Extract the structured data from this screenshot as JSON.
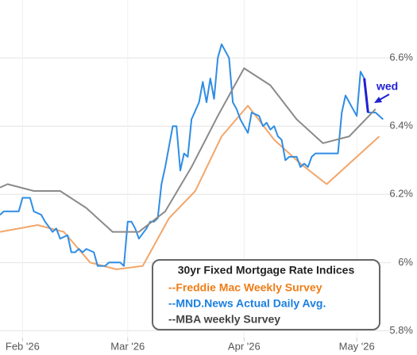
{
  "chart_data": {
    "type": "line",
    "xlim": [
      26,
      129
    ],
    "xticks": [
      {
        "value": 32,
        "label": "Feb '26"
      },
      {
        "value": 60,
        "label": "Mar '26"
      },
      {
        "value": 91,
        "label": "Apr '26"
      },
      {
        "value": 121,
        "label": "May '26"
      }
    ],
    "ylim": [
      5.78,
      6.77
    ],
    "yticks": [
      {
        "value": 5.8,
        "label": "5.8%"
      },
      {
        "value": 6,
        "label": "6%"
      },
      {
        "value": 6.2,
        "label": "6.2%"
      },
      {
        "value": 6.4,
        "label": "6.4%"
      },
      {
        "value": 6.6,
        "label": "6.6%"
      }
    ],
    "grid": true,
    "legend_title": "30yr Fixed Mortgage Rate Indices",
    "legend_position": "bottom-right",
    "annotation": {
      "text": "wed",
      "color": "#1f1fd6"
    },
    "series": [
      {
        "name": "--Freddie Mac Weekly Survey",
        "color": "#f2a66a",
        "label_color": "#ee7d16",
        "x": [
          26,
          36,
          43,
          50,
          57,
          64,
          71,
          78,
          85,
          92,
          99,
          106,
          113,
          120,
          127
        ],
        "values": [
          6.09,
          6.11,
          6.09,
          6.0,
          5.98,
          5.99,
          6.13,
          6.21,
          6.37,
          6.46,
          6.36,
          6.29,
          6.23,
          6.3,
          6.37
        ]
      },
      {
        "name": "--MND.News Actual Daily Avg.",
        "color": "#2f8de4",
        "label_color": "#1b7fe0",
        "x": [
          26,
          27,
          28,
          31,
          32,
          34,
          35,
          37,
          38,
          40,
          41,
          42,
          44,
          45,
          46,
          47,
          48,
          49,
          51,
          52,
          54,
          55,
          58,
          59,
          60,
          61,
          62,
          63,
          65,
          66,
          67,
          68,
          69,
          70,
          72,
          73,
          74,
          75,
          76,
          77,
          79,
          80,
          81,
          82,
          83,
          84,
          85,
          87,
          88,
          89,
          90,
          92,
          93,
          95,
          96,
          97,
          98,
          99,
          100,
          101,
          102,
          103,
          104,
          105,
          106,
          107,
          108,
          109,
          110,
          113,
          116,
          117,
          118,
          120,
          121,
          122,
          123,
          124,
          126,
          128
        ],
        "values": [
          6.14,
          6.15,
          6.15,
          6.15,
          6.19,
          6.19,
          6.15,
          6.14,
          6.12,
          6.09,
          6.1,
          6.07,
          6.08,
          6.03,
          6.03,
          6.04,
          6.03,
          6.04,
          6.03,
          5.99,
          5.99,
          6.0,
          6.0,
          5.99,
          6.12,
          6.12,
          6.1,
          6.07,
          6.1,
          6.12,
          6.12,
          6.13,
          6.23,
          6.28,
          6.4,
          6.4,
          6.27,
          6.32,
          6.31,
          6.42,
          6.47,
          6.53,
          6.47,
          6.54,
          6.48,
          6.6,
          6.64,
          6.6,
          6.47,
          6.45,
          6.42,
          6.38,
          6.44,
          6.43,
          6.4,
          6.41,
          6.39,
          6.4,
          6.37,
          6.36,
          6.3,
          6.31,
          6.31,
          6.31,
          6.28,
          6.29,
          6.28,
          6.31,
          6.32,
          6.32,
          6.32,
          6.44,
          6.49,
          6.45,
          6.43,
          6.56,
          6.54,
          6.44,
          6.44,
          6.42
        ]
      },
      {
        "name": "--MBA weekly Survey",
        "color": "#8a8a8a",
        "label_color": "#444444",
        "x": [
          26,
          28,
          35,
          42,
          49,
          56,
          63,
          70,
          77,
          84,
          91,
          98,
          105,
          112,
          119,
          126
        ],
        "values": [
          6.22,
          6.23,
          6.21,
          6.21,
          6.16,
          6.09,
          6.09,
          6.15,
          6.28,
          6.43,
          6.57,
          6.52,
          6.42,
          6.35,
          6.37,
          6.45
        ]
      }
    ]
  }
}
